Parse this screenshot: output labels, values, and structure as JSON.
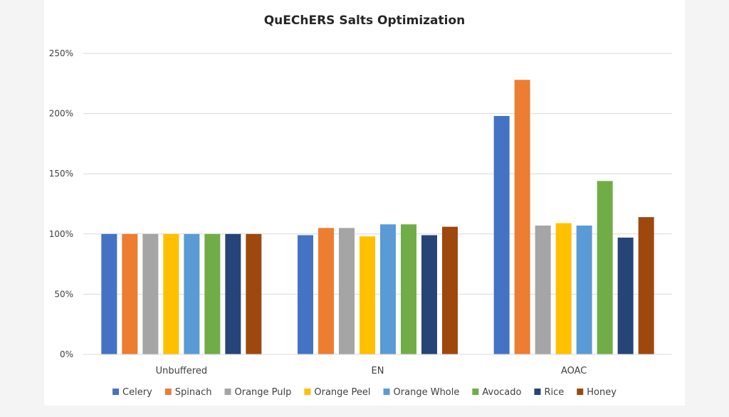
{
  "chart_data": {
    "type": "bar",
    "title": "QuEChERS Salts Optimization",
    "xlabel": "",
    "ylabel": "",
    "ylim": [
      0,
      250
    ],
    "y_ticks": [
      0,
      50,
      100,
      150,
      200,
      250
    ],
    "y_tick_labels": [
      "0%",
      "50%",
      "100%",
      "150%",
      "200%",
      "250%"
    ],
    "grid": true,
    "legend_position": "bottom",
    "categories": [
      "Unbuffered",
      "EN",
      "AOAC"
    ],
    "series": [
      {
        "name": "Celery",
        "color": "#4472C4",
        "values": [
          100,
          99,
          198
        ]
      },
      {
        "name": "Spinach",
        "color": "#ED7D31",
        "values": [
          100,
          105,
          228
        ]
      },
      {
        "name": "Orange Pulp",
        "color": "#A5A5A5",
        "values": [
          100,
          105,
          107
        ]
      },
      {
        "name": "Orange Peel",
        "color": "#FFC000",
        "values": [
          100,
          98,
          109
        ]
      },
      {
        "name": "Orange Whole",
        "color": "#5B9BD5",
        "values": [
          100,
          108,
          107
        ]
      },
      {
        "name": "Avocado",
        "color": "#70AD47",
        "values": [
          100,
          108,
          144
        ]
      },
      {
        "name": "Rice",
        "color": "#264478",
        "values": [
          100,
          99,
          97
        ]
      },
      {
        "name": "Honey",
        "color": "#9E480E",
        "values": [
          100,
          106,
          114
        ]
      }
    ]
  }
}
